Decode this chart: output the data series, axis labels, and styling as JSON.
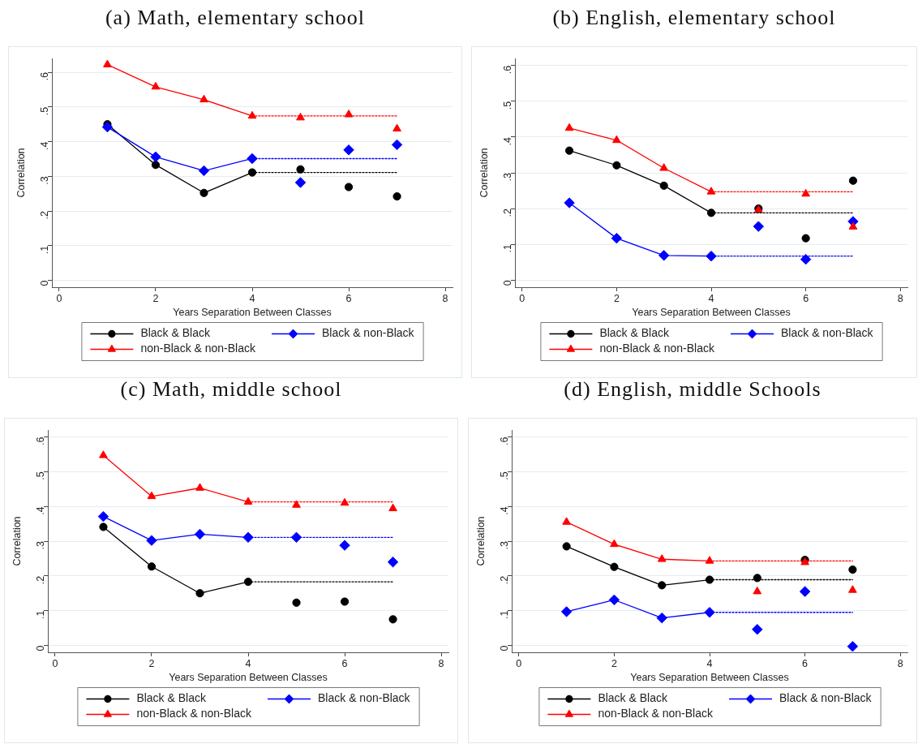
{
  "chart_data": [
    {
      "type": "line",
      "title": "(a) Math, elementary school",
      "xlabel": "Years Separation Between Classes",
      "ylabel": "Correlation",
      "xlim": [
        -0.15,
        8.15
      ],
      "xticks": [
        0,
        2,
        4,
        6,
        8
      ],
      "ylim": [
        -0.02,
        0.64
      ],
      "yticks": [
        {
          "value": 0,
          "label": "0"
        },
        {
          "value": 0.1,
          "label": ".1"
        },
        {
          "value": 0.2,
          "label": ".2"
        },
        {
          "value": 0.3,
          "label": ".3"
        },
        {
          "value": 0.4,
          "label": ".4"
        },
        {
          "value": 0.5,
          "label": ".5"
        },
        {
          "value": 0.6,
          "label": ".6"
        }
      ],
      "grid": "y",
      "legend": "bottom",
      "series": [
        {
          "name": "Black & Black",
          "color": "#000000",
          "marker": "circle",
          "x": [
            1,
            2,
            3,
            4
          ],
          "values": [
            0.45,
            0.333,
            0.252,
            0.311
          ]
        },
        {
          "name": "Black & non-Black",
          "color": "#0000ff",
          "marker": "diamond",
          "x": [
            1,
            2,
            3,
            4
          ],
          "values": [
            0.442,
            0.356,
            0.316,
            0.351
          ]
        },
        {
          "name": "non-Black & non-Black",
          "color": "#ff0000",
          "marker": "triangle",
          "x": [
            1,
            2,
            3,
            4
          ],
          "values": [
            0.622,
            0.558,
            0.521,
            0.474
          ]
        },
        {
          "type": "scatter",
          "color": "#000000",
          "marker": "circle",
          "x": [
            5,
            6,
            7
          ],
          "values": [
            0.32,
            0.269,
            0.242
          ]
        },
        {
          "type": "scatter",
          "color": "#0000ff",
          "marker": "diamond",
          "x": [
            5,
            6,
            7
          ],
          "values": [
            0.282,
            0.376,
            0.391
          ]
        },
        {
          "type": "scatter",
          "color": "#ff0000",
          "marker": "triangle",
          "x": [
            5,
            6,
            7
          ],
          "values": [
            0.469,
            0.478,
            0.437
          ]
        },
        {
          "color": "#000000",
          "marker": "none",
          "line_style": "dotted",
          "x": [
            4,
            7
          ],
          "values": [
            0.311,
            0.311
          ]
        },
        {
          "color": "#0000ff",
          "marker": "none",
          "line_style": "dotted",
          "x": [
            4,
            7
          ],
          "values": [
            0.351,
            0.351
          ]
        },
        {
          "color": "#ff0000",
          "marker": "none",
          "line_style": "dotted",
          "x": [
            4,
            7
          ],
          "values": [
            0.474,
            0.474
          ]
        }
      ]
    },
    {
      "type": "line",
      "title": "(b) English, elementary school",
      "xlabel": "Years Separation Between Classes",
      "ylabel": "Correlation",
      "xlim": [
        -0.15,
        8.15
      ],
      "xticks": [
        0,
        2,
        4,
        6,
        8
      ],
      "ylim": [
        -0.02,
        0.62
      ],
      "yticks": [
        {
          "value": 0,
          "label": "0"
        },
        {
          "value": 0.1,
          "label": ".1"
        },
        {
          "value": 0.2,
          "label": ".2"
        },
        {
          "value": 0.3,
          "label": ".3"
        },
        {
          "value": 0.4,
          "label": ".4"
        },
        {
          "value": 0.5,
          "label": ".5"
        },
        {
          "value": 0.6,
          "label": ".6"
        }
      ],
      "grid": "y",
      "legend": "bottom",
      "series": [
        {
          "name": "Black & Black",
          "color": "#000000",
          "marker": "circle",
          "x": [
            1,
            2,
            3,
            4
          ],
          "values": [
            0.362,
            0.321,
            0.264,
            0.188
          ]
        },
        {
          "name": "Black & non-Black",
          "color": "#0000ff",
          "marker": "diamond",
          "x": [
            1,
            2,
            3,
            4
          ],
          "values": [
            0.216,
            0.117,
            0.069,
            0.067
          ]
        },
        {
          "name": "non-Black & non-Black",
          "color": "#ff0000",
          "marker": "triangle",
          "x": [
            1,
            2,
            3,
            4
          ],
          "values": [
            0.425,
            0.391,
            0.313,
            0.247
          ]
        },
        {
          "type": "scatter",
          "color": "#000000",
          "marker": "circle",
          "x": [
            5,
            6,
            7
          ],
          "values": [
            0.2,
            0.117,
            0.278
          ]
        },
        {
          "type": "scatter",
          "color": "#0000ff",
          "marker": "diamond",
          "x": [
            5,
            6,
            7
          ],
          "values": [
            0.15,
            0.058,
            0.164
          ]
        },
        {
          "type": "scatter",
          "color": "#ff0000",
          "marker": "triangle",
          "x": [
            5,
            6,
            7
          ],
          "values": [
            0.196,
            0.241,
            0.149
          ]
        },
        {
          "color": "#000000",
          "marker": "none",
          "line_style": "dotted",
          "x": [
            4,
            7
          ],
          "values": [
            0.188,
            0.188
          ]
        },
        {
          "color": "#0000ff",
          "marker": "none",
          "line_style": "dotted",
          "x": [
            4,
            7
          ],
          "values": [
            0.067,
            0.067
          ]
        },
        {
          "color": "#ff0000",
          "marker": "none",
          "line_style": "dotted",
          "x": [
            4,
            7
          ],
          "values": [
            0.247,
            0.247
          ]
        }
      ]
    },
    {
      "type": "line",
      "title": "(c) Math, middle school",
      "xlabel": "Years Separation Between Classes",
      "ylabel": "Correlation",
      "xlim": [
        -0.15,
        8.15
      ],
      "xticks": [
        0,
        2,
        4,
        6,
        8
      ],
      "ylim": [
        -0.02,
        0.62
      ],
      "yticks": [
        {
          "value": 0,
          "label": "0"
        },
        {
          "value": 0.1,
          "label": ".1"
        },
        {
          "value": 0.2,
          "label": ".2"
        },
        {
          "value": 0.3,
          "label": ".3"
        },
        {
          "value": 0.4,
          "label": ".4"
        },
        {
          "value": 0.5,
          "label": ".5"
        },
        {
          "value": 0.6,
          "label": ".6"
        }
      ],
      "grid": "y",
      "legend": "bottom",
      "series": [
        {
          "name": "Black & Black",
          "color": "#000000",
          "marker": "circle",
          "x": [
            1,
            2,
            3,
            4
          ],
          "values": [
            0.341,
            0.227,
            0.15,
            0.183
          ]
        },
        {
          "name": "Black & non-Black",
          "color": "#0000ff",
          "marker": "diamond",
          "x": [
            1,
            2,
            3,
            4
          ],
          "values": [
            0.371,
            0.302,
            0.32,
            0.311
          ]
        },
        {
          "name": "non-Black & non-Black",
          "color": "#ff0000",
          "marker": "triangle",
          "x": [
            1,
            2,
            3,
            4
          ],
          "values": [
            0.547,
            0.429,
            0.453,
            0.413
          ]
        },
        {
          "type": "scatter",
          "color": "#000000",
          "marker": "circle",
          "x": [
            5,
            6,
            7
          ],
          "values": [
            0.123,
            0.126,
            0.075
          ]
        },
        {
          "type": "scatter",
          "color": "#0000ff",
          "marker": "diamond",
          "x": [
            5,
            6,
            7
          ],
          "values": [
            0.311,
            0.288,
            0.24
          ]
        },
        {
          "type": "scatter",
          "color": "#ff0000",
          "marker": "triangle",
          "x": [
            5,
            6,
            7
          ],
          "values": [
            0.404,
            0.41,
            0.394
          ]
        },
        {
          "color": "#000000",
          "marker": "none",
          "line_style": "dotted",
          "x": [
            4,
            7
          ],
          "values": [
            0.183,
            0.183
          ]
        },
        {
          "color": "#0000ff",
          "marker": "none",
          "line_style": "dotted",
          "x": [
            4,
            7
          ],
          "values": [
            0.311,
            0.311
          ]
        },
        {
          "color": "#ff0000",
          "marker": "none",
          "line_style": "dotted",
          "x": [
            4,
            7
          ],
          "values": [
            0.413,
            0.413
          ]
        }
      ]
    },
    {
      "type": "line",
      "title": "(d) English, middle Schools",
      "xlabel": "Years Separation Between Classes",
      "ylabel": "Correlation",
      "xlim": [
        -0.15,
        8.15
      ],
      "xticks": [
        0,
        2,
        4,
        6,
        8
      ],
      "ylim": [
        -0.02,
        0.62
      ],
      "yticks": [
        {
          "value": 0,
          "label": "0"
        },
        {
          "value": 0.1,
          "label": ".1"
        },
        {
          "value": 0.2,
          "label": ".2"
        },
        {
          "value": 0.3,
          "label": ".3"
        },
        {
          "value": 0.4,
          "label": ".4"
        },
        {
          "value": 0.5,
          "label": ".5"
        },
        {
          "value": 0.6,
          "label": ".6"
        }
      ],
      "grid": "y",
      "legend": "bottom",
      "series": [
        {
          "name": "Black & Black",
          "color": "#000000",
          "marker": "circle",
          "x": [
            1,
            2,
            3,
            4
          ],
          "values": [
            0.285,
            0.226,
            0.173,
            0.189
          ]
        },
        {
          "name": "Black & non-Black",
          "color": "#0000ff",
          "marker": "diamond",
          "x": [
            1,
            2,
            3,
            4
          ],
          "values": [
            0.097,
            0.131,
            0.079,
            0.095
          ]
        },
        {
          "name": "non-Black & non-Black",
          "color": "#ff0000",
          "marker": "triangle",
          "x": [
            1,
            2,
            3,
            4
          ],
          "values": [
            0.355,
            0.291,
            0.248,
            0.243
          ]
        },
        {
          "type": "scatter",
          "color": "#000000",
          "marker": "circle",
          "x": [
            5,
            6,
            7
          ],
          "values": [
            0.194,
            0.246,
            0.218
          ]
        },
        {
          "type": "scatter",
          "color": "#0000ff",
          "marker": "diamond",
          "x": [
            5,
            6,
            7
          ],
          "values": [
            0.046,
            0.155,
            -0.003
          ]
        },
        {
          "type": "scatter",
          "color": "#ff0000",
          "marker": "triangle",
          "x": [
            5,
            6,
            7
          ],
          "values": [
            0.155,
            0.239,
            0.159
          ]
        },
        {
          "color": "#000000",
          "marker": "none",
          "line_style": "dotted",
          "x": [
            4,
            7
          ],
          "values": [
            0.189,
            0.189
          ]
        },
        {
          "color": "#0000ff",
          "marker": "none",
          "line_style": "dotted",
          "x": [
            4,
            7
          ],
          "values": [
            0.095,
            0.095
          ]
        },
        {
          "color": "#ff0000",
          "marker": "none",
          "line_style": "dotted",
          "x": [
            4,
            7
          ],
          "values": [
            0.243,
            0.243
          ]
        }
      ]
    }
  ]
}
